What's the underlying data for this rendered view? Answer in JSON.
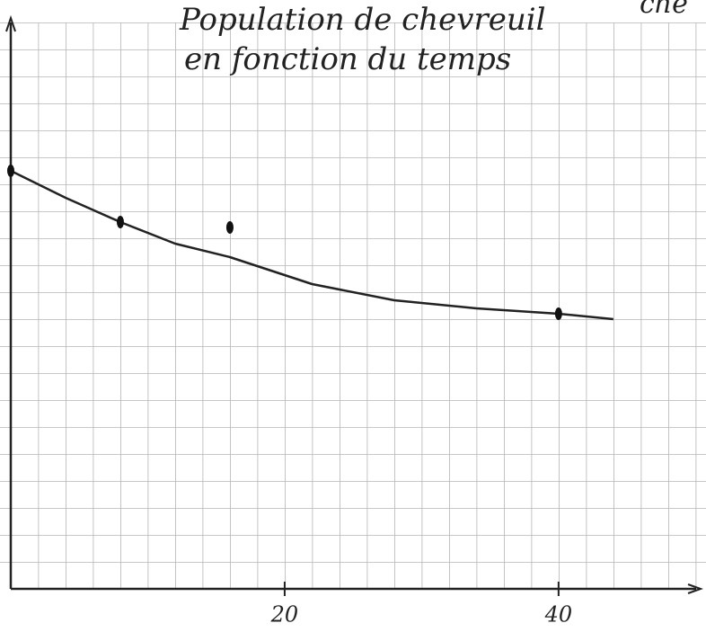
{
  "chart_data": {
    "type": "line",
    "title": [
      "Population de chevreuil",
      "en fonction du temps"
    ],
    "annotation": "che",
    "xlim": [
      0,
      50.7
    ],
    "ylim": [
      0,
      21.8
    ],
    "xticks": [
      20,
      40
    ],
    "series": [
      {
        "style": "line",
        "color": "#222222",
        "x": [
          0,
          4,
          8,
          12,
          16,
          22,
          28,
          34,
          40,
          44
        ],
        "values": [
          15.5,
          14.5,
          13.6,
          12.8,
          12.3,
          11.3,
          10.7,
          10.4,
          10.2,
          10.0
        ]
      },
      {
        "style": "points",
        "color": "#111111",
        "x": [
          0,
          8,
          16,
          40
        ],
        "values": [
          15.5,
          13.6,
          13.4,
          10.2
        ]
      }
    ]
  }
}
